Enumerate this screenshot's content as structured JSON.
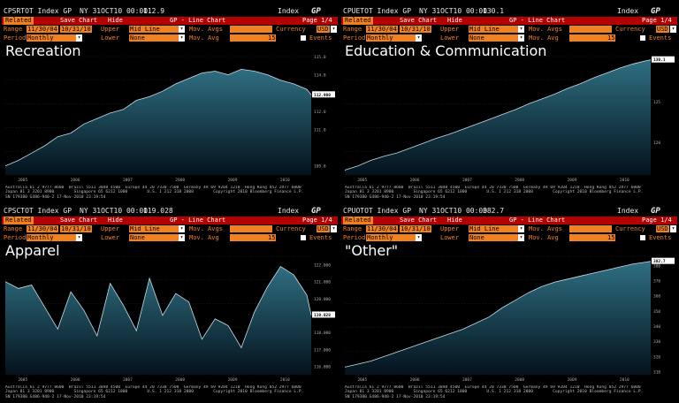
{
  "header": {
    "gp_label": "GP",
    "index_label": "Index",
    "buttons": {
      "related": "Related",
      "save_chart": "Save Chart",
      "hide": "Hide",
      "page_type": "GP - Line Chart",
      "page": "Page 1/4"
    },
    "labels": {
      "range": "Range",
      "period": "Period",
      "upper": "Upper",
      "lower": "Lower",
      "mov_avg": "Mov. Avgs",
      "mov_avg2": "Mov. Avg",
      "currency": "Currency",
      "events": "Events"
    },
    "values": {
      "range_start": "11/30/04",
      "range_end": "10/31/10",
      "period": "Monthly",
      "upper": "Mid Line",
      "lower": "None",
      "currency": "USD",
      "mov_avg_value": "15"
    }
  },
  "footer": {
    "line1": "Australia 61 2 9777 8600  Brazil 5511 3048 4500  Europe 44 20 7330 7500  Germany 49 69 9204 1210  Hong Kong 852 2977 6000",
    "line2": "Japan 81 3 3201 8900        Singapore 65 6212 1000        U.S. 1 212 318 2000        Copyright 2010 Bloomberg Finance L.P.",
    "line3": "SN 179380 G486-940-2 17-Nov-2010 23:19:54"
  },
  "panels": [
    {
      "ticker": "CPSRTOT Index GP",
      "month": "NY 31OCT10 00:00",
      "last_value": "112.9",
      "title": "Recreation",
      "chart_data": {
        "type": "area",
        "x": [
          "2004-12",
          "2005-03",
          "2005-06",
          "2005-09",
          "2005-12",
          "2006-03",
          "2006-06",
          "2006-09",
          "2006-12",
          "2007-03",
          "2007-06",
          "2007-09",
          "2007-12",
          "2008-03",
          "2008-06",
          "2008-09",
          "2008-12",
          "2009-03",
          "2009-06",
          "2009-09",
          "2009-12",
          "2010-03",
          "2010-06",
          "2010-09",
          "2010-10"
        ],
        "values": [
          109.0,
          109.3,
          109.7,
          110.1,
          110.6,
          110.8,
          111.3,
          111.6,
          111.9,
          112.1,
          112.6,
          112.8,
          113.1,
          113.5,
          113.8,
          114.1,
          114.2,
          114.0,
          114.3,
          114.2,
          114.0,
          113.7,
          113.5,
          113.2,
          112.9
        ],
        "ylim": [
          108.5,
          115
        ],
        "yticks": [
          "109.0",
          "111.0",
          "112.0",
          "113.0",
          "114.0",
          "115.0"
        ],
        "xticks": [
          "2005",
          "2006",
          "2007",
          "2008",
          "2009",
          "2010"
        ],
        "last_label": "112.900"
      }
    },
    {
      "ticker": "CPUETOT Index GP",
      "month": "NY 31OCT10 00:00",
      "last_value": "130.1",
      "title": "Education & Communication",
      "chart_data": {
        "type": "area",
        "x": [
          "2004-12",
          "2005-03",
          "2005-06",
          "2005-09",
          "2005-12",
          "2006-03",
          "2006-06",
          "2006-09",
          "2006-12",
          "2007-03",
          "2007-06",
          "2007-09",
          "2007-12",
          "2008-03",
          "2008-06",
          "2008-09",
          "2008-12",
          "2009-03",
          "2009-06",
          "2009-09",
          "2009-12",
          "2010-03",
          "2010-06",
          "2010-09",
          "2010-10"
        ],
        "values": [
          116.6,
          117.1,
          117.8,
          118.3,
          118.7,
          119.3,
          119.9,
          120.5,
          121.0,
          121.6,
          122.2,
          122.8,
          123.4,
          124.0,
          124.7,
          125.3,
          125.9,
          126.6,
          127.2,
          127.9,
          128.5,
          129.1,
          129.6,
          130.0,
          130.1
        ],
        "ylim": [
          116,
          130.5
        ],
        "yticks": [
          "115",
          "120",
          "125",
          "130"
        ],
        "xticks": [
          "2005",
          "2006",
          "2007",
          "2008",
          "2009",
          "2010"
        ],
        "last_label": "130.1"
      }
    },
    {
      "ticker": "CPSCTOT Index GP",
      "month": "NY 31OCT10 00:00",
      "last_value": "119.028",
      "title": "Apparel",
      "chart_data": {
        "type": "area",
        "x": [
          "2004-12",
          "2005-03",
          "2005-06",
          "2005-09",
          "2005-12",
          "2006-03",
          "2006-06",
          "2006-09",
          "2006-12",
          "2007-03",
          "2007-06",
          "2007-09",
          "2007-12",
          "2008-03",
          "2008-06",
          "2008-09",
          "2008-12",
          "2009-03",
          "2009-06",
          "2009-09",
          "2009-12",
          "2010-03",
          "2010-06",
          "2010-09",
          "2010-10"
        ],
        "values": [
          121.0,
          120.6,
          120.8,
          119.5,
          118.2,
          120.4,
          119.3,
          117.8,
          120.9,
          119.6,
          118.1,
          121.2,
          119.0,
          120.3,
          119.8,
          117.6,
          118.8,
          118.4,
          117.1,
          119.2,
          120.7,
          121.9,
          121.4,
          120.2,
          119.028
        ],
        "ylim": [
          115.5,
          122.5
        ],
        "yticks": [
          "116.000",
          "117.000",
          "118.000",
          "119.000",
          "120.000",
          "121.000",
          "122.000"
        ],
        "xticks": [
          "2005",
          "2006",
          "2007",
          "2008",
          "2009",
          "2010"
        ],
        "last_label": "119.028"
      }
    },
    {
      "ticker": "CPUOTOT Index GP",
      "month": "NY 31OCT10 00:00",
      "last_value": "382.7",
      "title": "\"Other\"",
      "chart_data": {
        "type": "area",
        "x": [
          "2004-12",
          "2005-03",
          "2005-06",
          "2005-09",
          "2005-12",
          "2006-03",
          "2006-06",
          "2006-09",
          "2006-12",
          "2007-03",
          "2007-06",
          "2007-09",
          "2007-12",
          "2008-03",
          "2008-06",
          "2008-09",
          "2008-12",
          "2009-03",
          "2009-06",
          "2009-09",
          "2009-12",
          "2010-03",
          "2010-06",
          "2010-09",
          "2010-10"
        ],
        "values": [
          313,
          315,
          317,
          320,
          323,
          326,
          329,
          332,
          335,
          338,
          342,
          346,
          352,
          357,
          362,
          366,
          369,
          371,
          373,
          375,
          377,
          379,
          381,
          382.2,
          382.7
        ],
        "ylim": [
          308,
          386
        ],
        "yticks": [
          "310",
          "320",
          "330",
          "340",
          "350",
          "360",
          "370",
          "380"
        ],
        "xticks": [
          "2005",
          "2006",
          "2007",
          "2008",
          "2009",
          "2010"
        ],
        "last_label": "382.7"
      }
    }
  ]
}
